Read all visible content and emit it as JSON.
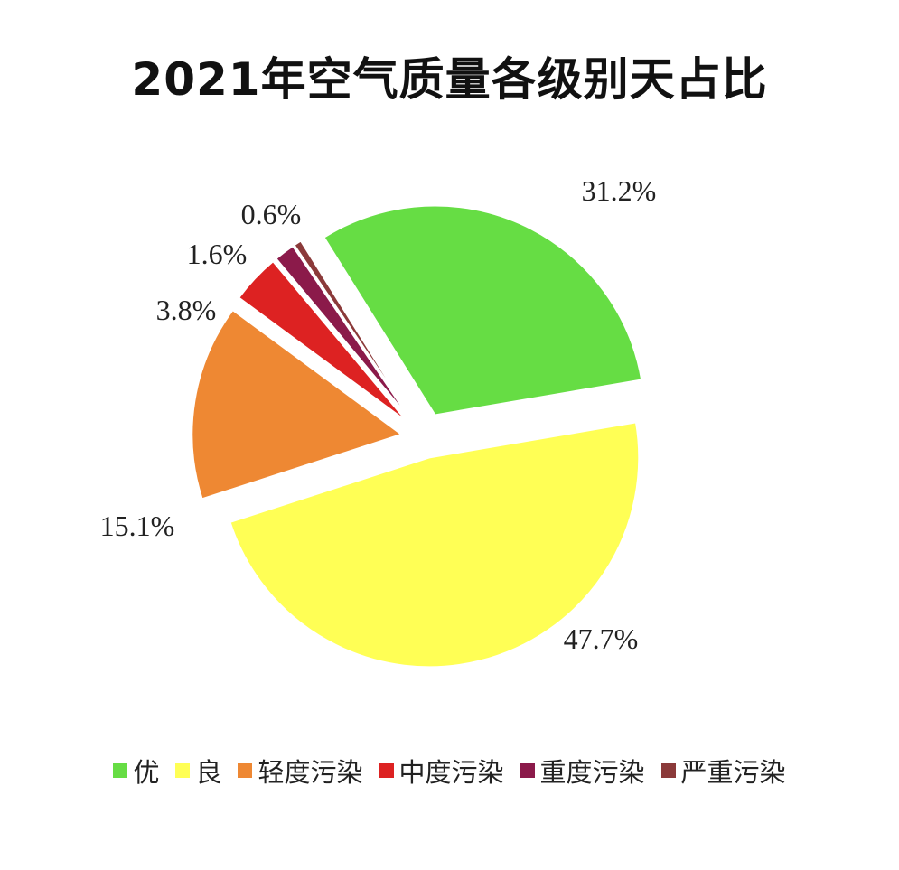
{
  "chart_data": {
    "type": "pie",
    "title": "2021年空气质量各级别天占比",
    "slices": [
      {
        "name": "优",
        "value": 31.2,
        "label": "31.2%",
        "color": "#66DD44"
      },
      {
        "name": "良",
        "value": 47.7,
        "label": "47.7%",
        "color": "#FFFF55"
      },
      {
        "name": "轻度污染",
        "value": 15.1,
        "label": "15.1%",
        "color": "#EE8833"
      },
      {
        "name": "中度污染",
        "value": 3.8,
        "label": "3.8%",
        "color": "#DD2222"
      },
      {
        "name": "重度污染",
        "value": 1.6,
        "label": "1.6%",
        "color": "#8B1A4A"
      },
      {
        "name": "严重污染",
        "value": 0.6,
        "label": "0.6%",
        "color": "#8B3A3A"
      }
    ],
    "legend_position": "bottom"
  }
}
